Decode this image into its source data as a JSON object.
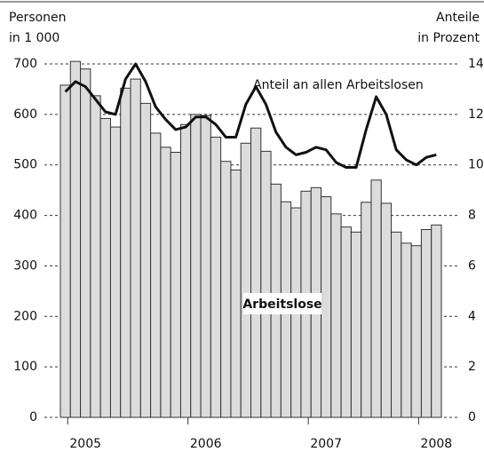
{
  "chart_data": {
    "type": "bar_line",
    "y_label": [
      "Personen",
      "in 1 000"
    ],
    "y2_label": [
      "Anteile",
      "in Prozent"
    ],
    "categories": [
      null,
      null,
      "2005",
      null,
      null,
      null,
      null,
      null,
      null,
      null,
      null,
      null,
      null,
      null,
      "2006",
      null,
      null,
      null,
      null,
      null,
      null,
      null,
      null,
      null,
      null,
      null,
      "2007",
      null,
      null,
      null,
      null,
      null,
      null,
      null,
      null,
      null,
      null,
      "2008"
    ],
    "series": [
      {
        "name": "Arbeitslose",
        "color": "#dcdcdc",
        "values": [
          658,
          705,
          690,
          637,
          592,
          575,
          652,
          670,
          622,
          563,
          535,
          525,
          580,
          600,
          598,
          555,
          507,
          490,
          543,
          573,
          527,
          462,
          427,
          415,
          448,
          455,
          437,
          403,
          377,
          367,
          426,
          470,
          424,
          367,
          345,
          340,
          372,
          381
        ]
      },
      {
        "name": "Anteil an allen Arbeitslosen",
        "color": "#111111",
        "axis": "y2",
        "values": [
          12.9,
          13.3,
          13.1,
          12.6,
          12.1,
          12.0,
          13.4,
          14.0,
          13.3,
          12.3,
          11.8,
          11.4,
          11.5,
          11.9,
          11.9,
          11.6,
          11.1,
          11.1,
          12.4,
          13.1,
          12.4,
          11.3,
          10.7,
          10.4,
          10.5,
          10.7,
          10.6,
          10.1,
          9.9,
          9.9,
          11.4,
          12.7,
          12.0,
          10.6,
          10.2,
          10.0,
          10.3,
          10.4
        ]
      }
    ],
    "ylim": [
      0,
      700
    ],
    "yticks": [
      0,
      100,
      200,
      300,
      400,
      500,
      600,
      700
    ],
    "y2lim": [
      0,
      14
    ],
    "y2ticks": [
      0,
      2,
      4,
      6,
      8,
      10,
      12,
      14
    ],
    "grid": true
  }
}
